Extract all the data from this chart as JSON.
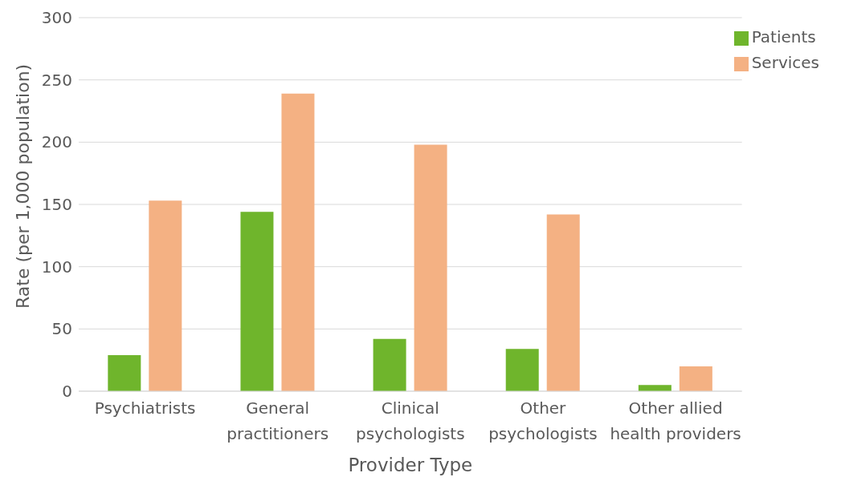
{
  "chart_data": {
    "type": "bar",
    "xlabel": "Provider Type",
    "ylabel": "Rate (per 1,000 population)",
    "categories": [
      "Psychiatrists",
      "General practitioners",
      "Clinical psychologists",
      "Other psychologists",
      "Other allied health providers"
    ],
    "series": [
      {
        "name": "Patients",
        "color": "#6fb52c",
        "values": [
          29,
          144,
          42,
          34,
          5
        ]
      },
      {
        "name": "Services",
        "color": "#f4b183",
        "values": [
          153,
          239,
          198,
          142,
          20
        ]
      }
    ],
    "ylim": [
      0,
      300
    ],
    "yticks": [
      0,
      50,
      100,
      150,
      200,
      250,
      300
    ],
    "grid": "y",
    "legend": "top right"
  }
}
